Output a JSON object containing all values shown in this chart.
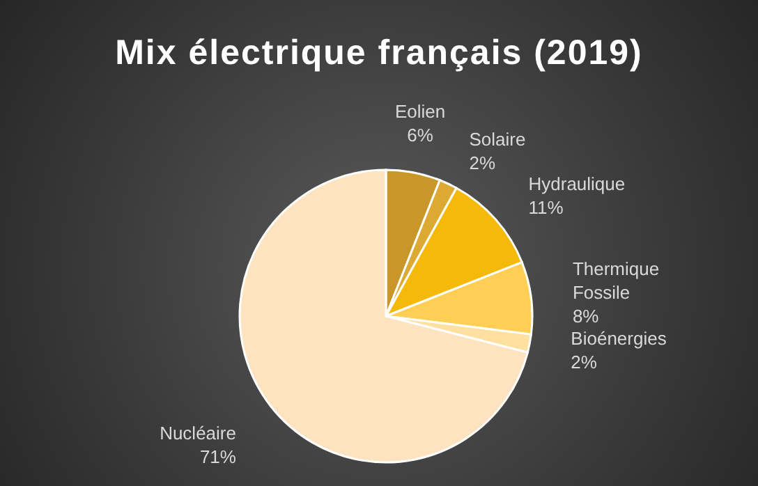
{
  "chart_data": {
    "type": "pie",
    "title": "Mix électrique français (2019)",
    "categories": [
      "Eolien",
      "Solaire",
      "Hydraulique",
      "Thermique Fossile",
      "Bioénergies",
      "Nucléaire"
    ],
    "values": [
      6,
      2,
      11,
      8,
      2,
      71
    ],
    "colors": [
      "#c9962a",
      "#dcaa32",
      "#f5b90a",
      "#ffcf55",
      "#ffe0a0",
      "#fde3bf"
    ],
    "value_labels": [
      "6%",
      "2%",
      "11%",
      "8%",
      "2%",
      "71%"
    ]
  }
}
